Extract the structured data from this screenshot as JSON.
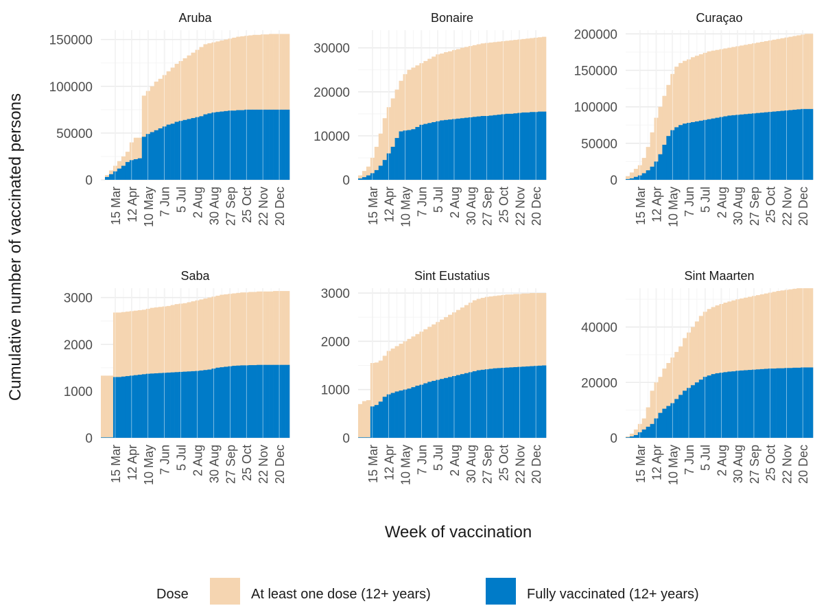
{
  "figure": {
    "ylabel": "Cumulative number of vaccinated persons",
    "xlabel": "Week of vaccination",
    "legend_title": "Dose",
    "legend_position": "bottom"
  },
  "colors": {
    "at_least_one": "#F5D5B1",
    "fully": "#007BC8",
    "grid_major": "#EBEBEB",
    "grid_minor": "#F5F5F5",
    "text": "#4D4D4D",
    "title": "#1A1A1A"
  },
  "chart_data": {
    "type": "bar",
    "stacked": false,
    "overlapping": true,
    "x_tick_labels": [
      "15 Mar",
      "12 Apr",
      "10 May",
      "7 Jun",
      "5 Jul",
      "2 Aug",
      "30 Aug",
      "27 Sep",
      "25 Oct",
      "22 Nov",
      "20 Dec"
    ],
    "x_tick_weeks": [
      4,
      8,
      12,
      16,
      20,
      24,
      28,
      32,
      36,
      40,
      44
    ],
    "weeks": [
      1,
      2,
      3,
      4,
      5,
      6,
      7,
      8,
      9,
      10,
      11,
      12,
      13,
      14,
      15,
      16,
      17,
      18,
      19,
      20,
      21,
      22,
      23,
      24,
      25,
      26,
      27,
      28,
      29,
      30,
      31,
      32,
      33,
      34,
      35,
      36,
      37,
      38,
      39,
      40,
      41,
      42,
      43,
      44,
      45,
      46
    ],
    "week_range": [
      0.5,
      46.5
    ],
    "grid": true,
    "legend": [
      {
        "key": "at_least_one",
        "label": "At least one dose (12+ years)"
      },
      {
        "key": "fully",
        "label": "Fully vaccinated (12+ years)"
      }
    ],
    "panels": [
      {
        "title": "Aruba",
        "ylim": [
          0,
          160000
        ],
        "yticks": [
          0,
          50000,
          100000,
          150000
        ],
        "series": [
          {
            "key": "at_least_one",
            "values": [
              0,
              5000,
              10000,
              15000,
              20000,
              25000,
              30000,
              40000,
              45000,
              45000,
              90000,
              95000,
              100000,
              105000,
              108000,
              112000,
              116000,
              120000,
              124000,
              127000,
              130000,
              133000,
              136000,
              139000,
              142000,
              145000,
              146000,
              147000,
              148000,
              149000,
              150000,
              151000,
              152000,
              153000,
              153500,
              154000,
              154500,
              155000,
              155000,
              155500,
              155500,
              156000,
              156000,
              156000,
              156000,
              156000
            ]
          },
          {
            "key": "fully",
            "values": [
              0,
              3000,
              6000,
              9000,
              12000,
              15000,
              19000,
              21000,
              22000,
              23000,
              46000,
              49000,
              51000,
              53000,
              55000,
              57000,
              59000,
              60000,
              62000,
              63000,
              64000,
              65000,
              66000,
              67000,
              68000,
              70000,
              71000,
              72000,
              72500,
              73000,
              73500,
              74000,
              74000,
              74500,
              74500,
              75000,
              75000,
              75000,
              75000,
              75000,
              75000,
              75000,
              75000,
              75000,
              75000,
              75000
            ]
          }
        ]
      },
      {
        "title": "Bonaire",
        "ylim": [
          0,
          34000
        ],
        "yticks": [
          0,
          10000,
          20000,
          30000
        ],
        "series": [
          {
            "key": "at_least_one",
            "values": [
              1000,
              2000,
              3000,
              5000,
              7500,
              10500,
              14000,
              16500,
              18500,
              20500,
              22500,
              24000,
              25000,
              25500,
              26000,
              26500,
              27000,
              27500,
              28000,
              28500,
              28700,
              29000,
              29200,
              29500,
              29700,
              30000,
              30200,
              30400,
              30600,
              30800,
              31000,
              31100,
              31200,
              31300,
              31400,
              31500,
              31600,
              31700,
              31800,
              31900,
              32000,
              32100,
              32200,
              32300,
              32400,
              32500
            ]
          },
          {
            "key": "fully",
            "values": [
              300,
              600,
              1000,
              1500,
              2200,
              3200,
              4500,
              6000,
              7500,
              9500,
              11000,
              11200,
              11300,
              11500,
              12000,
              12500,
              12700,
              12900,
              13100,
              13300,
              13500,
              13600,
              13700,
              13800,
              13900,
              14000,
              14100,
              14200,
              14300,
              14400,
              14500,
              14500,
              14600,
              14700,
              14800,
              14900,
              15000,
              15000,
              15100,
              15200,
              15300,
              15300,
              15400,
              15400,
              15500,
              15500
            ]
          }
        ]
      },
      {
        "title": "Curaçao",
        "ylim": [
          0,
          205000
        ],
        "yticks": [
          0,
          50000,
          100000,
          150000,
          200000
        ],
        "series": [
          {
            "key": "at_least_one",
            "values": [
              5000,
              10000,
              15000,
              20000,
              30000,
              45000,
              65000,
              85000,
              100000,
              115000,
              130000,
              145000,
              155000,
              160000,
              163000,
              165000,
              168000,
              170000,
              172000,
              174000,
              176000,
              177000,
              178000,
              179000,
              180000,
              181000,
              182000,
              183000,
              184000,
              185000,
              186000,
              187000,
              188000,
              189000,
              190000,
              191000,
              192000,
              193000,
              194000,
              195000,
              196000,
              197000,
              198000,
              199000,
              200000,
              200000
            ]
          },
          {
            "key": "fully",
            "values": [
              1000,
              2000,
              4000,
              6000,
              9000,
              13000,
              18000,
              25000,
              35000,
              48000,
              60000,
              68000,
              72000,
              75000,
              77000,
              78000,
              79000,
              80000,
              81000,
              82000,
              83000,
              84000,
              85000,
              86000,
              87000,
              88000,
              88500,
              89000,
              89500,
              90000,
              90500,
              91000,
              91500,
              92000,
              92500,
              93000,
              93500,
              94000,
              94500,
              95000,
              95500,
              96000,
              96500,
              97000,
              97000,
              97000
            ]
          }
        ]
      },
      {
        "title": "Saba",
        "ylim": [
          0,
          3200
        ],
        "yticks": [
          0,
          1000,
          2000,
          3000
        ],
        "series": [
          {
            "key": "at_least_one",
            "values": [
              1330,
              1330,
              1330,
              2680,
              2680,
              2690,
              2700,
              2710,
              2720,
              2730,
              2740,
              2760,
              2780,
              2790,
              2800,
              2810,
              2820,
              2840,
              2860,
              2870,
              2880,
              2900,
              2920,
              2940,
              2960,
              2980,
              3000,
              3020,
              3040,
              3060,
              3070,
              3080,
              3090,
              3100,
              3110,
              3110,
              3120,
              3120,
              3130,
              3130,
              3130,
              3130,
              3140,
              3140,
              3140,
              3140
            ]
          },
          {
            "key": "fully",
            "values": [
              10,
              10,
              10,
              1300,
              1300,
              1310,
              1320,
              1330,
              1340,
              1350,
              1360,
              1370,
              1375,
              1380,
              1385,
              1390,
              1395,
              1400,
              1405,
              1410,
              1415,
              1420,
              1425,
              1430,
              1440,
              1450,
              1460,
              1480,
              1500,
              1510,
              1520,
              1530,
              1540,
              1545,
              1550,
              1550,
              1555,
              1555,
              1560,
              1560,
              1560,
              1560,
              1560,
              1560,
              1560,
              1560
            ]
          }
        ]
      },
      {
        "title": "Sint Eustatius",
        "ylim": [
          0,
          3100
        ],
        "yticks": [
          0,
          1000,
          2000,
          3000
        ],
        "series": [
          {
            "key": "at_least_one",
            "values": [
              700,
              760,
              780,
              1550,
              1560,
              1600,
              1700,
              1800,
              1850,
              1900,
              1950,
              2000,
              2050,
              2100,
              2150,
              2200,
              2250,
              2300,
              2350,
              2400,
              2450,
              2500,
              2550,
              2600,
              2650,
              2700,
              2750,
              2800,
              2850,
              2880,
              2900,
              2920,
              2930,
              2940,
              2950,
              2960,
              2970,
              2970,
              2980,
              2980,
              2990,
              2990,
              3000,
              3000,
              3000,
              3000
            ]
          },
          {
            "key": "fully",
            "values": [
              10,
              10,
              10,
              650,
              680,
              750,
              850,
              900,
              930,
              960,
              980,
              1000,
              1020,
              1050,
              1080,
              1100,
              1130,
              1160,
              1180,
              1200,
              1220,
              1240,
              1260,
              1280,
              1300,
              1320,
              1340,
              1360,
              1380,
              1400,
              1410,
              1420,
              1430,
              1440,
              1445,
              1450,
              1455,
              1460,
              1465,
              1470,
              1475,
              1480,
              1485,
              1490,
              1495,
              1500
            ]
          }
        ]
      },
      {
        "title": "Sint Maarten",
        "ylim": [
          0,
          54000
        ],
        "yticks": [
          0,
          20000,
          40000
        ],
        "series": [
          {
            "key": "at_least_one",
            "values": [
              500,
              1500,
              3000,
              5000,
              7000,
              11000,
              17000,
              20000,
              22000,
              25000,
              27000,
              29000,
              31000,
              33000,
              36000,
              38000,
              40000,
              42000,
              44000,
              45500,
              46500,
              47200,
              47800,
              48300,
              48800,
              49200,
              49600,
              50000,
              50300,
              50600,
              50900,
              51200,
              51500,
              51800,
              52100,
              52400,
              52700,
              53000,
              53200,
              53400,
              53600,
              53800,
              54000,
              54000,
              54000,
              54000
            ]
          },
          {
            "key": "fully",
            "values": [
              200,
              500,
              1000,
              2000,
              3000,
              4000,
              5000,
              7000,
              9000,
              10500,
              11500,
              12500,
              14000,
              15500,
              17000,
              18000,
              19000,
              20000,
              21000,
              22000,
              22500,
              23000,
              23300,
              23500,
              23700,
              23900,
              24000,
              24200,
              24300,
              24400,
              24500,
              24600,
              24700,
              24800,
              24900,
              25000,
              25000,
              25100,
              25100,
              25200,
              25200,
              25300,
              25300,
              25400,
              25400,
              25400
            ]
          }
        ]
      }
    ]
  }
}
